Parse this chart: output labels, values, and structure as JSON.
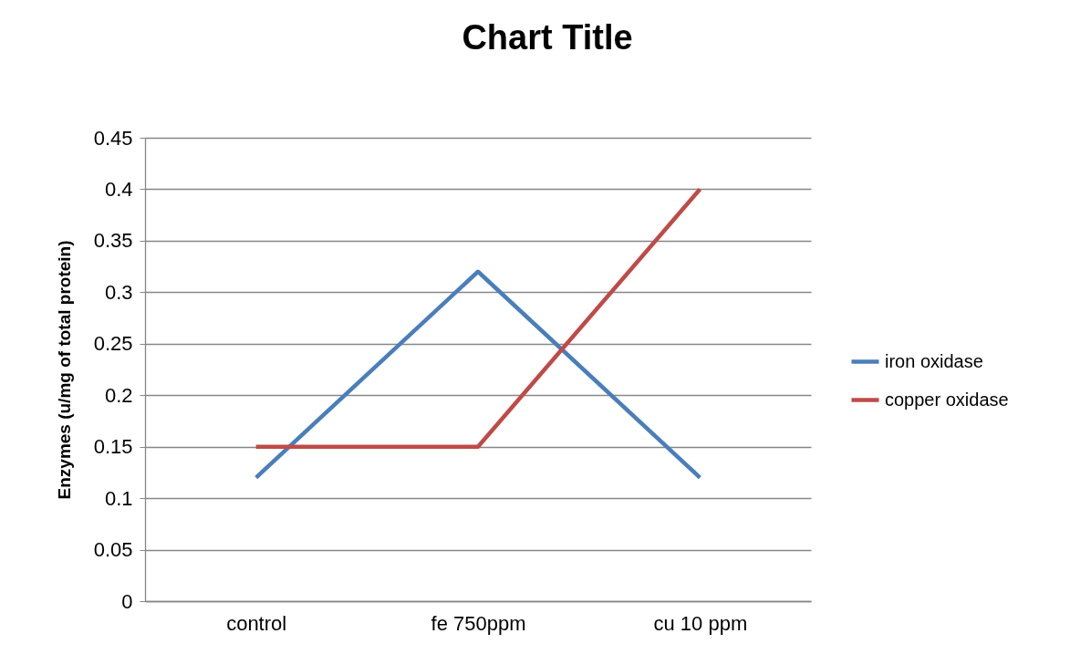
{
  "chart_data": {
    "type": "line",
    "title": "Chart Title",
    "ylabel": "Enzymes (u/mg of total protein)",
    "categories": [
      "control",
      "fe 750ppm",
      "cu 10 ppm"
    ],
    "series": [
      {
        "name": "iron oxidase",
        "color": "#4a7ebb",
        "values": [
          0.12,
          0.32,
          0.12
        ]
      },
      {
        "name": "copper oxidase",
        "color": "#be4b48",
        "values": [
          0.15,
          0.15,
          0.4
        ]
      }
    ],
    "ylim": [
      0,
      0.45
    ],
    "yticks": [
      0,
      0.05,
      0.1,
      0.15,
      0.2,
      0.25,
      0.3,
      0.35,
      0.4,
      0.45
    ],
    "grid": "y",
    "legend": "right",
    "line_style": "solid",
    "marker": "none"
  }
}
